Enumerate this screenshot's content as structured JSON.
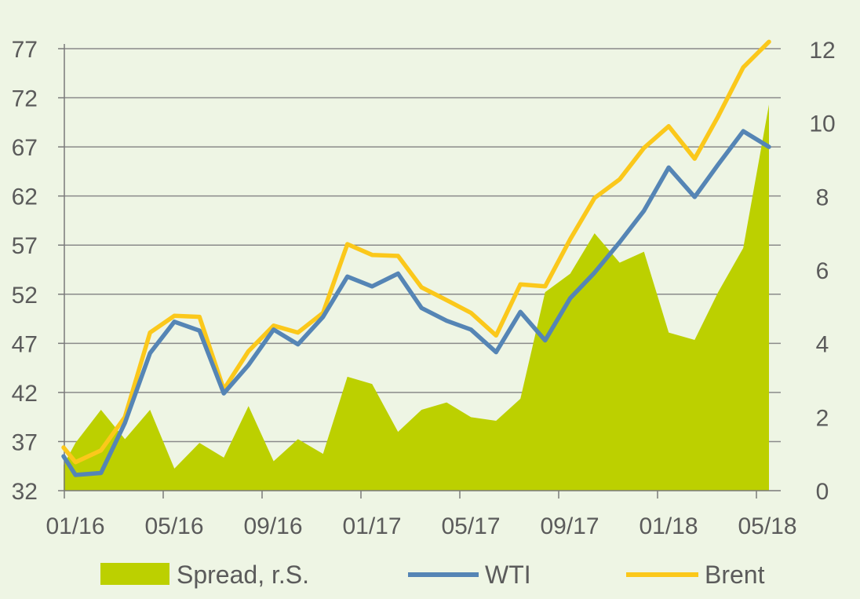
{
  "colors": {
    "background": "#eef5e4",
    "spread": "#bcd000",
    "wti": "#5585b5",
    "brent": "#fbc81b",
    "grid": "#8a8a8a",
    "text": "#5b5b5b"
  },
  "chart_data": {
    "type": "line",
    "grid": true,
    "legend_position": "bottom",
    "x_ticks": [
      "01/16",
      "05/16",
      "09/16",
      "01/17",
      "05/17",
      "09/17",
      "01/18",
      "05/18"
    ],
    "y_left": {
      "range": [
        32,
        77
      ],
      "ticks": [
        "32",
        "37",
        "42",
        "47",
        "52",
        "57",
        "62",
        "67",
        "72",
        "77"
      ]
    },
    "y_right": {
      "range": [
        0,
        12
      ],
      "ticks": [
        "0",
        "2",
        "4",
        "6",
        "8",
        "10",
        "12"
      ]
    },
    "x": [
      "2015-12-31",
      "2016-01-15",
      "2016-02-15",
      "2016-03-15",
      "2016-04-15",
      "2016-05-15",
      "2016-06-15",
      "2016-07-15",
      "2016-08-15",
      "2016-09-15",
      "2016-10-15",
      "2016-11-15",
      "2016-12-15",
      "2017-01-15",
      "2017-02-15",
      "2017-03-15",
      "2017-04-15",
      "2017-05-15",
      "2017-06-15",
      "2017-07-15",
      "2017-08-15",
      "2017-09-15",
      "2017-10-15",
      "2017-11-15",
      "2017-12-15",
      "2018-01-15",
      "2018-02-15",
      "2018-03-15",
      "2018-04-15",
      "2018-05-15"
    ],
    "series": [
      {
        "name": "Spread, r.S.",
        "axis": "right",
        "kind": "area",
        "values": [
          0.7,
          1.3,
          2.2,
          1.4,
          2.2,
          0.6,
          1.3,
          0.9,
          2.3,
          0.8,
          1.4,
          1.0,
          3.1,
          2.9,
          1.6,
          2.2,
          2.4,
          2.0,
          1.9,
          2.5,
          5.4,
          5.9,
          7.0,
          6.2,
          6.5,
          4.3,
          4.1,
          5.4,
          6.6,
          10.5
        ]
      },
      {
        "name": "WTI",
        "axis": "left",
        "kind": "line",
        "values": [
          35.5,
          33.6,
          33.8,
          38.9,
          46.0,
          49.2,
          48.3,
          41.9,
          44.8,
          48.4,
          46.9,
          49.7,
          53.8,
          52.8,
          54.1,
          50.6,
          49.3,
          48.4,
          46.1,
          50.2,
          47.3,
          51.6,
          54.2,
          57.3,
          60.5,
          64.9,
          61.9,
          65.2,
          68.6,
          67.0
        ]
      },
      {
        "name": "Brent",
        "axis": "left",
        "kind": "line",
        "values": [
          36.4,
          34.9,
          36.1,
          39.5,
          48.1,
          49.8,
          49.7,
          42.3,
          46.2,
          48.8,
          48.1,
          50.1,
          57.1,
          56.0,
          55.9,
          52.7,
          51.4,
          50.1,
          47.8,
          53.0,
          52.8,
          57.6,
          61.8,
          63.7,
          66.9,
          69.1,
          65.8,
          70.1,
          75.1,
          77.7
        ]
      }
    ]
  }
}
